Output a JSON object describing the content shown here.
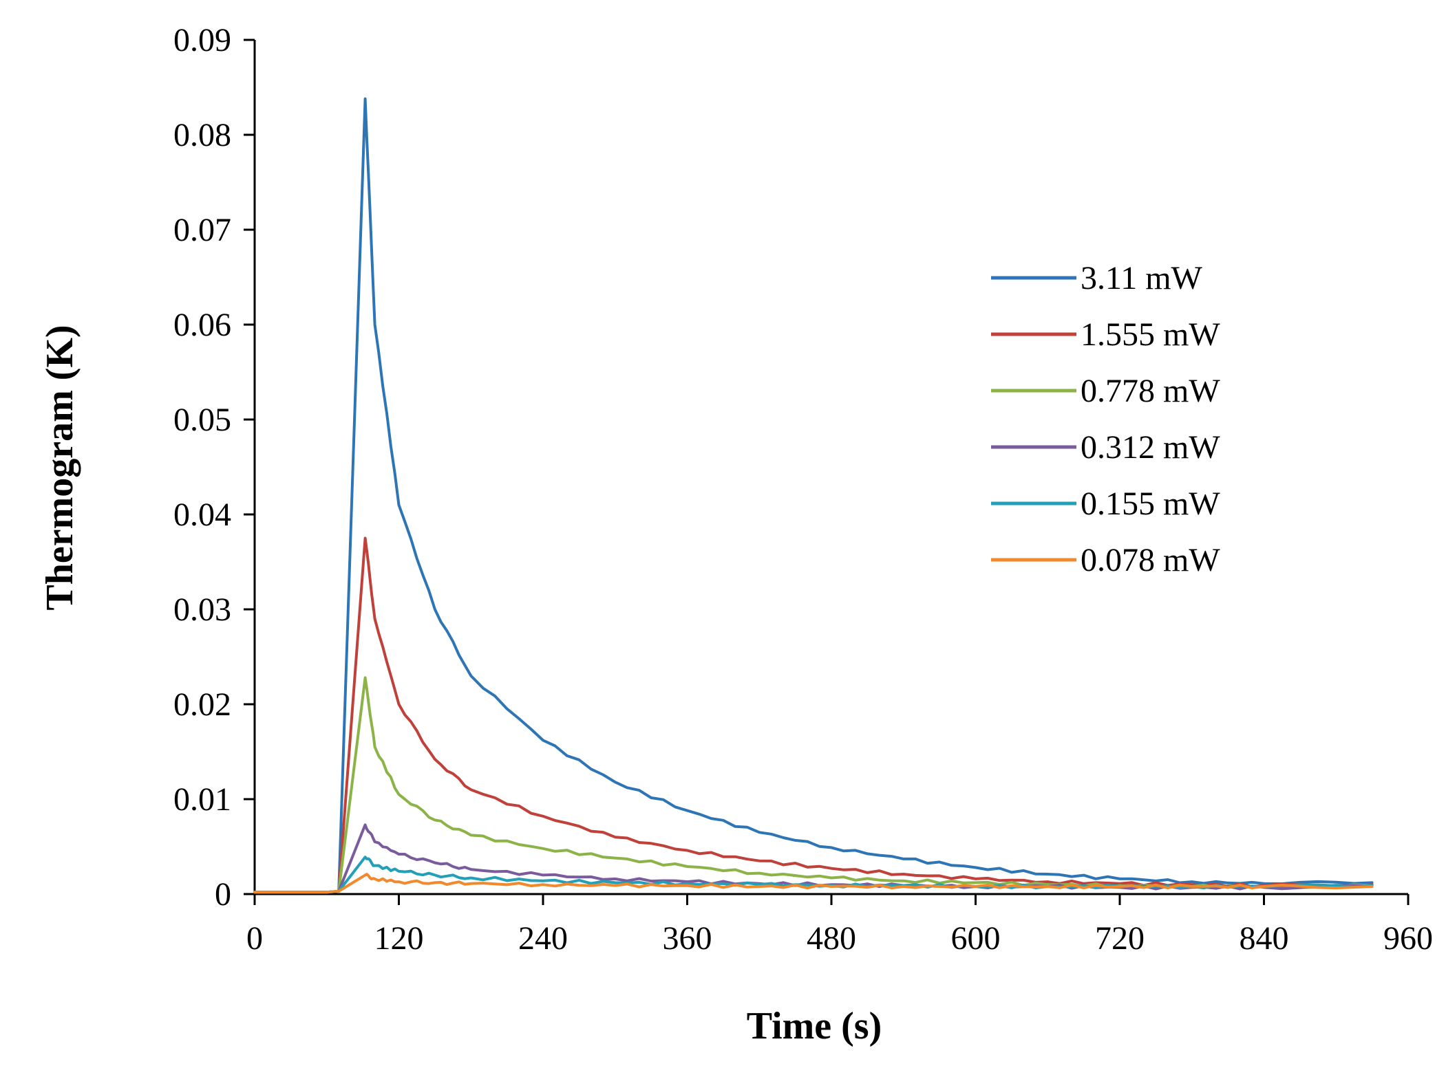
{
  "chart_data": {
    "type": "line",
    "xlabel": "Time (s)",
    "ylabel": "Thermogram (K)",
    "xlim": [
      0,
      960
    ],
    "ylim": [
      0,
      0.09
    ],
    "xticks": [
      0,
      120,
      240,
      360,
      480,
      600,
      720,
      840,
      960
    ],
    "xtick_labels": [
      "0",
      "120",
      "240",
      "360",
      "480",
      "600",
      "720",
      "840",
      "960"
    ],
    "yticks": [
      0,
      0.01,
      0.02,
      0.03,
      0.04,
      0.05,
      0.06,
      0.07,
      0.08,
      0.09
    ],
    "ytick_labels": [
      "0",
      "0.01",
      "0.02",
      "0.03",
      "0.04",
      "0.05",
      "0.06",
      "0.07",
      "0.08",
      "0.09"
    ],
    "grid": false,
    "legend_position": "right",
    "x": [
      0,
      30,
      60,
      70,
      92,
      100,
      120,
      150,
      180,
      240,
      300,
      360,
      420,
      480,
      540,
      600,
      660,
      720,
      780,
      840,
      930
    ],
    "series": [
      {
        "name": "3.11 mW",
        "color": "#2E75B6",
        "values": [
          0.0002,
          0.0002,
          0.0002,
          0.0003,
          0.0838,
          0.06,
          0.041,
          0.03,
          0.023,
          0.0162,
          0.0118,
          0.0088,
          0.0065,
          0.0049,
          0.0037,
          0.0028,
          0.0021,
          0.0016,
          0.0013,
          0.0011,
          0.0012
        ]
      },
      {
        "name": "1.555 mW",
        "color": "#C0403A",
        "values": [
          0.0002,
          0.0002,
          0.0002,
          0.0003,
          0.0375,
          0.029,
          0.02,
          0.0142,
          0.011,
          0.0082,
          0.006,
          0.0046,
          0.0035,
          0.0027,
          0.0021,
          0.0016,
          0.0013,
          0.0011,
          0.001,
          0.0009,
          0.001
        ]
      },
      {
        "name": "0.778 mW",
        "color": "#8BB347",
        "values": [
          0.0002,
          0.0002,
          0.0002,
          0.0003,
          0.0228,
          0.0155,
          0.0105,
          0.0078,
          0.0062,
          0.0048,
          0.0038,
          0.0029,
          0.0022,
          0.0017,
          0.0014,
          0.0012,
          0.001,
          0.0009,
          0.0008,
          0.0008,
          0.0009
        ]
      },
      {
        "name": "0.312 mW",
        "color": "#7A5C9E",
        "values": [
          0.0002,
          0.0002,
          0.0002,
          0.0003,
          0.0073,
          0.0055,
          0.0042,
          0.0033,
          0.0026,
          0.002,
          0.0016,
          0.0013,
          0.0011,
          0.001,
          0.0009,
          0.0008,
          0.0008,
          0.0007,
          0.0007,
          0.0007,
          0.0008
        ]
      },
      {
        "name": "0.155 mW",
        "color": "#21A0B8",
        "values": [
          0.0002,
          0.0002,
          0.0002,
          0.0003,
          0.0039,
          0.003,
          0.0024,
          0.002,
          0.0017,
          0.0014,
          0.0012,
          0.0011,
          0.001,
          0.0009,
          0.0009,
          0.0008,
          0.0008,
          0.0008,
          0.0008,
          0.0008,
          0.0009
        ]
      },
      {
        "name": "0.078 mW",
        "color": "#F08A2C",
        "values": [
          0.0002,
          0.0002,
          0.0002,
          0.0003,
          0.002,
          0.0016,
          0.0013,
          0.0012,
          0.0011,
          0.001,
          0.0009,
          0.0009,
          0.0008,
          0.0008,
          0.0008,
          0.0008,
          0.0008,
          0.0008,
          0.0008,
          0.0008,
          0.0008
        ]
      }
    ]
  }
}
